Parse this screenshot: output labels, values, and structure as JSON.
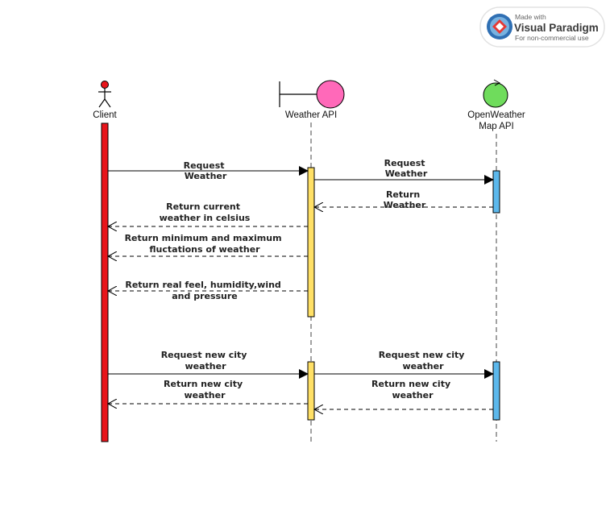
{
  "badge": {
    "made_with": "Made with",
    "brand": "Visual Paradigm",
    "note": "For non-commercial use"
  },
  "participants": {
    "client": {
      "label": "Client",
      "color": "#e8151b"
    },
    "weather_api": {
      "label": "Weather API",
      "color": "#ff69b9",
      "activation_color": "#ffe066"
    },
    "openweather": {
      "label_line1": "OpenWeather",
      "label_line2": "Map API",
      "color": "#6fdc5c",
      "activation_color": "#5cb8ec"
    }
  },
  "messages": {
    "m1": {
      "line1": "Request",
      "line2": "Weather"
    },
    "m2": {
      "line1": "Request",
      "line2": "Weather"
    },
    "m3": {
      "line1": "Return",
      "line2": "Weather"
    },
    "m4": {
      "line1": "Return current",
      "line2": "weather in celsius"
    },
    "m5": {
      "line1": "Return minimum and maximum",
      "line2": "fluctations of weather"
    },
    "m6": {
      "line1": "Return real feel,  humidity,wind",
      "line2": "and pressure"
    },
    "m7": {
      "line1": "Request new city",
      "line2": "weather"
    },
    "m8": {
      "line1": "Request new city",
      "line2": "weather"
    },
    "m9": {
      "line1": "Return new city",
      "line2": "weather"
    },
    "m10": {
      "line1": "Return new city",
      "line2": "weather"
    }
  }
}
